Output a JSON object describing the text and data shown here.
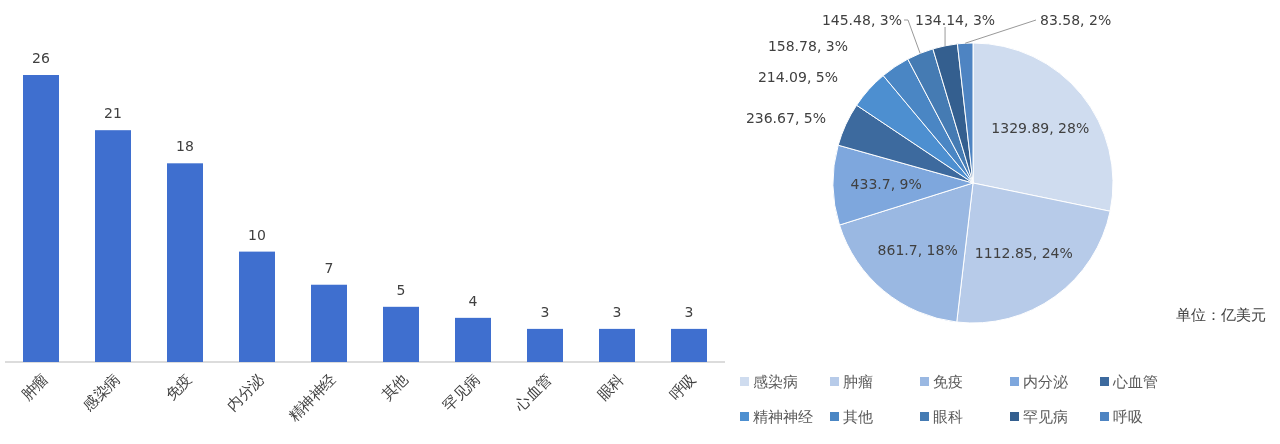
{
  "chart_data": [
    {
      "type": "bar",
      "categories": [
        "肿瘤",
        "感染病",
        "免疫",
        "内分泌",
        "精神神经",
        "其他",
        "罕见病",
        "心血管",
        "眼科",
        "呼吸"
      ],
      "values": [
        26,
        21,
        18,
        10,
        7,
        5,
        4,
        3,
        3,
        3
      ],
      "color": "#3f6fcf",
      "data_labels": true,
      "tick_labels": "x"
    },
    {
      "type": "pie",
      "categories": [
        "感染病",
        "肿瘤",
        "免疫",
        "内分泌",
        "心血管",
        "精神神经",
        "其他",
        "眼科",
        "罕见病",
        "呼吸"
      ],
      "values": [
        1329.89,
        1112.85,
        861.7,
        433.7,
        236.67,
        214.09,
        158.78,
        145.48,
        134.14,
        83.58
      ],
      "colors": [
        "#cfdcef",
        "#b7cbe9",
        "#9ab8e2",
        "#7ea7dd",
        "#3d6a9e",
        "#4d8fd0",
        "#4a86c4",
        "#457bb3",
        "#345f8f",
        "#4e84c2"
      ],
      "value_labels": [
        "1329.89, 28%",
        "1112.85, 24%",
        "861.7, 18%",
        "433.7, 9%",
        "236.67, 5%",
        "214.09, 5%",
        "158.78, 3%",
        "145.48, 3%",
        "134.14, 3%",
        "83.58, 2%"
      ],
      "annotations": [
        "单位：亿美元"
      ],
      "legend": "bottom"
    }
  ]
}
